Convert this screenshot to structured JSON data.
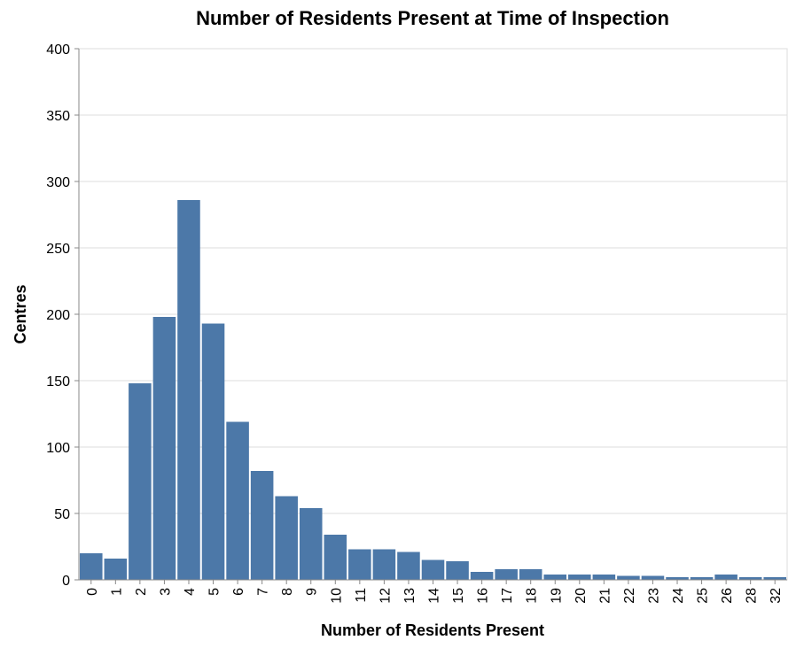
{
  "chart_data": {
    "type": "bar",
    "title": "Number of Residents Present at Time of Inspection",
    "xlabel": "Number of Residents Present",
    "ylabel": "Centres",
    "categories": [
      "0",
      "1",
      "2",
      "3",
      "4",
      "5",
      "6",
      "7",
      "8",
      "9",
      "10",
      "11",
      "12",
      "13",
      "14",
      "15",
      "16",
      "17",
      "18",
      "19",
      "20",
      "21",
      "22",
      "23",
      "24",
      "25",
      "26",
      "28",
      "32"
    ],
    "values": [
      20,
      16,
      148,
      198,
      286,
      193,
      119,
      82,
      63,
      54,
      34,
      23,
      23,
      21,
      15,
      14,
      6,
      8,
      8,
      4,
      4,
      4,
      3,
      3,
      2,
      2,
      4,
      2,
      2
    ],
    "ylim": [
      0,
      400
    ],
    "yticks": [
      0,
      50,
      100,
      150,
      200,
      250,
      300,
      350,
      400
    ],
    "grid": true,
    "bar_color": "#4c78a8"
  }
}
